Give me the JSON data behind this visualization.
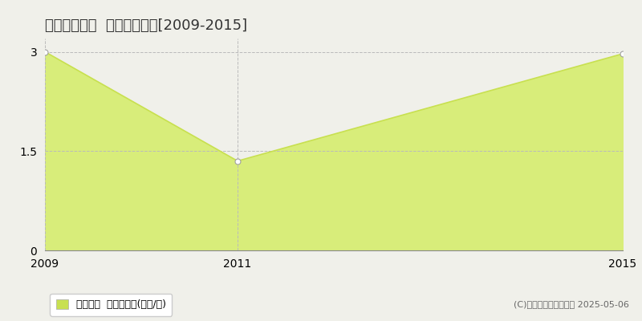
{
  "title": "指宿市新西方  土地価格推移[2009-2015]",
  "years": [
    2009,
    2011,
    2015
  ],
  "values": [
    3.0,
    1.35,
    2.97
  ],
  "line_color": "#c8e050",
  "fill_color": "#d8ed7a",
  "marker_color": "#ffffff",
  "marker_edge_color": "#a0a0a0",
  "background_color": "#f0f0ea",
  "ylim": [
    0,
    3.2
  ],
  "yticks": [
    0,
    1.5,
    3
  ],
  "xlim": [
    2009,
    2015
  ],
  "xticks": [
    2009,
    2011,
    2015
  ],
  "grid_color": "#bbbbbb",
  "legend_label": "土地価格  平均坪単価(万円/坪)",
  "copyright": "(C)土地価格ドットコム 2025-05-06",
  "title_fontsize": 13,
  "tick_fontsize": 10,
  "legend_fontsize": 9,
  "copyright_fontsize": 8
}
